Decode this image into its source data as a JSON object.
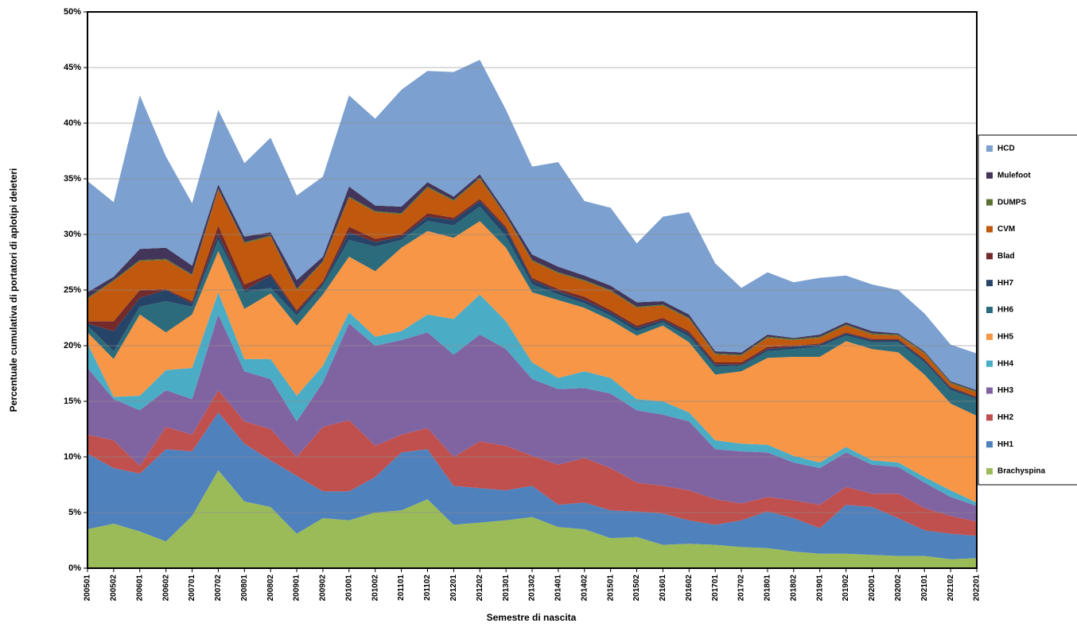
{
  "chart_data": {
    "type": "stacked_area",
    "xlabel": "Semestre di nascita",
    "ylabel": "Percentuale cumulativa di portatori di aplotipi deleteri",
    "categories": [
      "200501",
      "200502",
      "200601",
      "200602",
      "200701",
      "200702",
      "200801",
      "200802",
      "200901",
      "200902",
      "201001",
      "201002",
      "201101",
      "201102",
      "201201",
      "201202",
      "201301",
      "201302",
      "201401",
      "201402",
      "201501",
      "201502",
      "201601",
      "201602",
      "201701",
      "201702",
      "201801",
      "201802",
      "201901",
      "201902",
      "202001",
      "202002",
      "202101",
      "202102",
      "202201"
    ],
    "ylim": [
      0,
      50
    ],
    "yticks": [
      {
        "value": 0,
        "label": "0%"
      },
      {
        "value": 5,
        "label": "5%"
      },
      {
        "value": 10,
        "label": "10%"
      },
      {
        "value": 15,
        "label": "15%"
      },
      {
        "value": 20,
        "label": "20%"
      },
      {
        "value": 25,
        "label": "25%"
      },
      {
        "value": 30,
        "label": "30%"
      },
      {
        "value": 35,
        "label": "35%"
      },
      {
        "value": 40,
        "label": "40%"
      },
      {
        "value": 45,
        "label": "45%"
      },
      {
        "value": 50,
        "label": "50%"
      }
    ],
    "grid": true,
    "legend": "right",
    "series": [
      {
        "name": "Brachyspina",
        "color": "#9bbb59",
        "values": [
          3.5,
          4.0,
          3.3,
          2.4,
          4.7,
          8.8,
          6.0,
          5.5,
          3.1,
          4.5,
          4.3,
          5.0,
          5.2,
          6.2,
          3.9,
          4.1,
          4.3,
          4.6,
          3.7,
          3.5,
          2.7,
          2.8,
          2.1,
          2.2,
          2.1,
          1.9,
          1.8,
          1.5,
          1.3,
          1.3,
          1.2,
          1.1,
          1.1,
          0.8,
          0.9
        ]
      },
      {
        "name": "HH1",
        "color": "#4f81bd",
        "values": [
          6.8,
          5.0,
          5.2,
          8.3,
          5.8,
          5.2,
          5.2,
          4.2,
          5.2,
          2.4,
          2.6,
          3.2,
          5.2,
          4.5,
          3.5,
          3.1,
          2.7,
          2.8,
          2.0,
          2.4,
          2.5,
          2.3,
          2.8,
          2.1,
          1.8,
          2.4,
          3.3,
          3.0,
          2.3,
          4.4,
          4.3,
          3.4,
          2.3,
          2.3,
          2.0
        ]
      },
      {
        "name": "HH2",
        "color": "#c0504d",
        "values": [
          1.7,
          2.5,
          0.7,
          2.0,
          1.5,
          2.0,
          2.0,
          2.8,
          1.7,
          5.8,
          6.4,
          2.8,
          1.6,
          1.9,
          2.6,
          4.2,
          4.0,
          2.7,
          3.6,
          4.0,
          3.8,
          2.6,
          2.5,
          2.7,
          2.3,
          1.5,
          1.3,
          1.6,
          2.1,
          1.6,
          1.2,
          2.2,
          2.0,
          1.6,
          1.3
        ]
      },
      {
        "name": "HH3",
        "color": "#8064a2",
        "values": [
          6.0,
          3.7,
          5.0,
          3.3,
          3.2,
          6.8,
          4.5,
          4.5,
          3.2,
          4.0,
          8.7,
          9.0,
          8.5,
          8.6,
          9.2,
          9.6,
          8.7,
          6.9,
          6.8,
          6.3,
          6.7,
          6.5,
          6.4,
          6.2,
          4.5,
          4.7,
          4.0,
          3.4,
          3.3,
          3.1,
          2.6,
          2.4,
          2.3,
          1.7,
          1.4
        ]
      },
      {
        "name": "HH4",
        "color": "#4bacc6",
        "values": [
          2.2,
          0.2,
          1.3,
          1.8,
          2.8,
          2.0,
          1.1,
          1.8,
          2.3,
          1.5,
          1.0,
          0.8,
          0.8,
          1.6,
          3.2,
          3.6,
          2.5,
          1.5,
          1.0,
          1.5,
          1.4,
          1.0,
          1.2,
          0.8,
          0.8,
          0.7,
          0.7,
          0.6,
          0.5,
          0.5,
          0.4,
          0.4,
          0.5,
          0.6,
          0.3
        ]
      },
      {
        "name": "HH5",
        "color": "#f79646",
        "values": [
          1.0,
          3.4,
          7.3,
          3.4,
          4.8,
          3.7,
          4.5,
          5.9,
          6.3,
          6.4,
          5.0,
          5.9,
          7.5,
          7.5,
          7.3,
          6.6,
          6.6,
          6.3,
          7.0,
          5.7,
          5.2,
          5.7,
          6.8,
          6.3,
          5.9,
          6.5,
          7.8,
          8.9,
          9.5,
          9.5,
          10.0,
          9.9,
          9.2,
          7.8,
          7.8
        ]
      },
      {
        "name": "HH6",
        "color": "#2c6b7b",
        "values": [
          0.6,
          0.7,
          0.7,
          2.8,
          0.7,
          1.0,
          1.5,
          0.5,
          0.9,
          0.8,
          1.5,
          2.2,
          0.7,
          0.9,
          1.1,
          1.3,
          1.0,
          0.7,
          0.5,
          0.4,
          0.4,
          0.4,
          0.3,
          0.5,
          0.7,
          0.5,
          0.6,
          0.7,
          0.9,
          0.5,
          0.6,
          0.9,
          1.1,
          1.2,
          1.5
        ]
      },
      {
        "name": "HH7",
        "color": "#254468",
        "values": [
          0.2,
          1.8,
          0.8,
          1.0,
          0.3,
          0.5,
          0.2,
          1.1,
          0.3,
          0.2,
          0.7,
          0.4,
          0.3,
          0.4,
          0.5,
          0.5,
          0.7,
          0.4,
          0.3,
          0.3,
          0.3,
          0.3,
          0.2,
          0.3,
          0.2,
          0.1,
          0.2,
          0.2,
          0.2,
          0.2,
          0.2,
          0.2,
          0.2,
          0.2,
          0.1
        ]
      },
      {
        "name": "Blad",
        "color": "#742a2a",
        "values": [
          0.2,
          0.9,
          0.7,
          0.1,
          0.2,
          0.8,
          0.5,
          0.2,
          0.2,
          0.2,
          0.5,
          0.3,
          0.2,
          0.3,
          0.2,
          0.2,
          0.2,
          0.2,
          0.2,
          0.3,
          0.2,
          0.2,
          0.2,
          0.2,
          0.2,
          0.2,
          0.2,
          0.1,
          0.1,
          0.1,
          0.1,
          0.1,
          0.1,
          0.1,
          0.1
        ]
      },
      {
        "name": "CVM",
        "color": "#c0580e",
        "values": [
          2.0,
          3.6,
          2.6,
          2.6,
          2.3,
          3.2,
          3.7,
          3.3,
          1.8,
          1.7,
          2.6,
          2.4,
          1.8,
          2.3,
          1.5,
          1.8,
          0.9,
          1.5,
          1.4,
          1.4,
          1.7,
          1.6,
          1.1,
          1.1,
          0.7,
          0.6,
          0.8,
          0.5,
          0.5,
          0.6,
          0.4,
          0.3,
          0.5,
          0.3,
          0.4
        ]
      },
      {
        "name": "DUMPS",
        "color": "#5a7030",
        "values": [
          0.1,
          0.1,
          0.1,
          0.1,
          0.1,
          0.1,
          0.1,
          0.1,
          0.1,
          0.1,
          0.1,
          0.1,
          0.1,
          0.1,
          0.1,
          0.1,
          0.1,
          0.1,
          0.1,
          0.1,
          0.1,
          0.1,
          0.1,
          0.1,
          0.1,
          0.1,
          0.1,
          0.1,
          0.1,
          0.1,
          0.1,
          0.1,
          0.1,
          0.1,
          0.1
        ]
      },
      {
        "name": "Mulefoot",
        "color": "#433559",
        "values": [
          0.5,
          0.3,
          1.0,
          1.0,
          0.8,
          0.4,
          0.5,
          0.3,
          0.8,
          0.4,
          0.9,
          0.5,
          0.6,
          0.4,
          0.3,
          0.3,
          0.3,
          0.5,
          0.5,
          0.4,
          0.4,
          0.4,
          0.3,
          0.3,
          0.2,
          0.2,
          0.2,
          0.1,
          0.2,
          0.2,
          0.2,
          0.1,
          0.1,
          0.1,
          0.1
        ]
      },
      {
        "name": "HCD",
        "color": "#7ca0cf",
        "values": [
          10.0,
          6.7,
          13.8,
          8.2,
          5.6,
          6.7,
          6.6,
          8.5,
          7.6,
          7.2,
          8.2,
          7.8,
          10.5,
          10.0,
          11.2,
          10.3,
          9.2,
          7.9,
          9.4,
          6.7,
          7.0,
          5.3,
          7.6,
          9.2,
          7.9,
          5.8,
          5.6,
          5.0,
          5.1,
          4.2,
          4.2,
          3.9,
          3.4,
          3.3,
          3.3
        ]
      }
    ]
  }
}
